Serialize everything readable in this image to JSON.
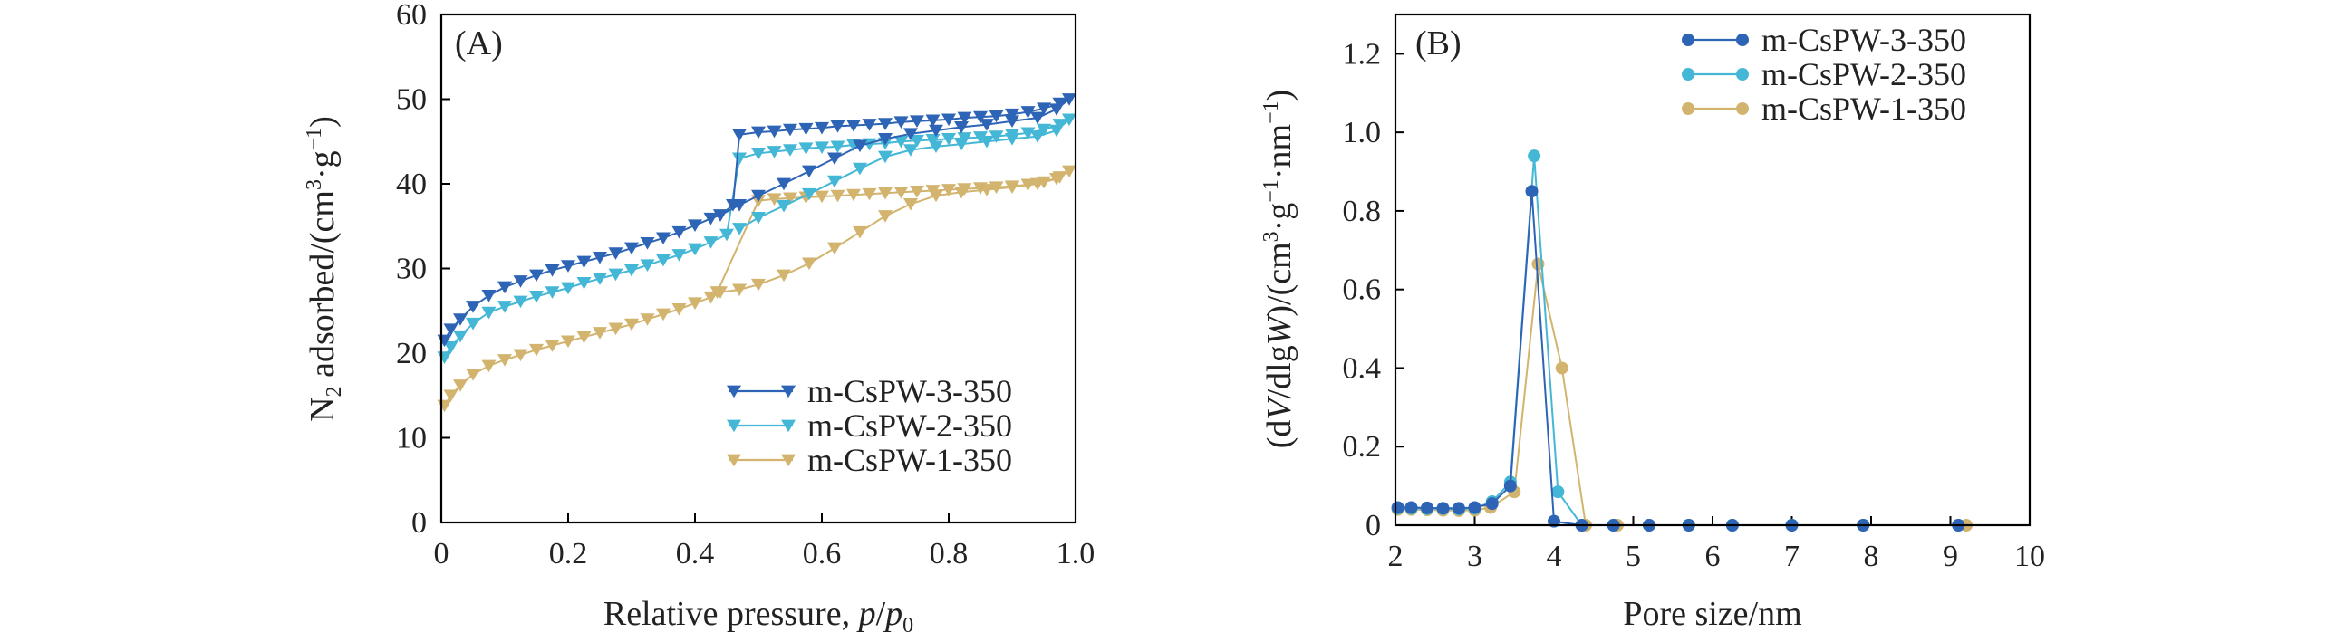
{
  "chart_data": [
    {
      "id": "A",
      "type": "line",
      "panel_label": "(A)",
      "xlabel": "Relative pressure, p/p0",
      "xlabel_parts": {
        "prefix": "Relative pressure, ",
        "p": "p",
        "slash": "/",
        "p0": "p",
        "sub": "0"
      },
      "ylabel_parts": {
        "n": "N",
        "sub": "2",
        "rest1": " adsorbed/(cm",
        "sup3": "3",
        "rest2": "·g",
        "supm1": "−1",
        "rest3": ")"
      },
      "xlim": [
        0,
        1.0
      ],
      "ylim": [
        0,
        60
      ],
      "xticks": [
        0,
        0.2,
        0.4,
        0.6,
        0.8,
        1.0
      ],
      "xtick_labels": [
        "0",
        "0.2",
        "0.4",
        "0.6",
        "0.8",
        "1.0"
      ],
      "yticks": [
        0,
        10,
        20,
        30,
        40,
        50,
        60
      ],
      "ytick_labels": [
        "0",
        "10",
        "20",
        "30",
        "40",
        "50",
        "60"
      ],
      "legend_position": "bottom-right",
      "series": [
        {
          "name": "m-CsPW-3-350",
          "color": "#2e64b5",
          "marker": "triangle-down",
          "x": [
            0.005,
            0.015,
            0.03,
            0.05,
            0.075,
            0.1,
            0.125,
            0.15,
            0.175,
            0.2,
            0.225,
            0.25,
            0.275,
            0.3,
            0.325,
            0.35,
            0.375,
            0.4,
            0.425,
            0.44,
            0.46,
            0.47,
            0.5,
            0.525,
            0.55,
            0.575,
            0.6,
            0.625,
            0.65,
            0.675,
            0.7,
            0.725,
            0.75,
            0.775,
            0.8,
            0.825,
            0.85,
            0.875,
            0.9,
            0.925,
            0.95,
            0.975,
            0.99,
            0.97,
            0.94,
            0.9,
            0.86,
            0.82,
            0.78,
            0.74,
            0.7,
            0.66,
            0.62,
            0.58,
            0.54,
            0.5,
            0.47,
            0.44
          ],
          "y": [
            21.5,
            22.8,
            24.0,
            25.5,
            26.8,
            27.8,
            28.5,
            29.2,
            29.8,
            30.3,
            30.8,
            31.3,
            31.8,
            32.4,
            33.0,
            33.6,
            34.3,
            35.1,
            35.9,
            36.3,
            37.5,
            45.8,
            46.1,
            46.2,
            46.4,
            46.5,
            46.6,
            46.8,
            46.9,
            47.0,
            47.1,
            47.3,
            47.4,
            47.5,
            47.6,
            47.8,
            47.9,
            48.0,
            48.2,
            48.5,
            48.9,
            49.5,
            50.0,
            48.8,
            47.8,
            47.4,
            47.0,
            46.7,
            46.3,
            45.9,
            45.3,
            44.5,
            43.0,
            41.5,
            40.0,
            38.6,
            37.5,
            36.3
          ]
        },
        {
          "name": "m-CsPW-2-350",
          "color": "#45b7d6",
          "marker": "triangle-down",
          "x": [
            0.005,
            0.015,
            0.03,
            0.05,
            0.075,
            0.1,
            0.125,
            0.15,
            0.175,
            0.2,
            0.225,
            0.25,
            0.275,
            0.3,
            0.325,
            0.35,
            0.375,
            0.4,
            0.425,
            0.45,
            0.47,
            0.5,
            0.525,
            0.55,
            0.575,
            0.6,
            0.625,
            0.65,
            0.675,
            0.7,
            0.725,
            0.75,
            0.775,
            0.8,
            0.825,
            0.85,
            0.875,
            0.9,
            0.925,
            0.95,
            0.975,
            0.99,
            0.97,
            0.94,
            0.9,
            0.86,
            0.82,
            0.78,
            0.74,
            0.7,
            0.66,
            0.62,
            0.58,
            0.54,
            0.5,
            0.47
          ],
          "y": [
            19.5,
            20.7,
            22.0,
            23.5,
            24.8,
            25.5,
            26.1,
            26.7,
            27.2,
            27.7,
            28.3,
            28.8,
            29.3,
            29.8,
            30.4,
            31.0,
            31.6,
            32.3,
            33.1,
            34.0,
            43.0,
            43.6,
            43.8,
            44.0,
            44.2,
            44.3,
            44.4,
            44.6,
            44.7,
            44.8,
            45.0,
            45.1,
            45.2,
            45.3,
            45.4,
            45.5,
            45.6,
            45.8,
            46.0,
            46.4,
            47.0,
            47.6,
            46.3,
            45.6,
            45.3,
            45.0,
            44.7,
            44.4,
            44.0,
            43.2,
            41.8,
            40.3,
            38.8,
            37.4,
            36.0,
            34.7
          ]
        },
        {
          "name": "m-CsPW-1-350",
          "color": "#d2b46e",
          "marker": "triangle-down",
          "x": [
            0.005,
            0.015,
            0.03,
            0.05,
            0.075,
            0.1,
            0.125,
            0.15,
            0.175,
            0.2,
            0.225,
            0.25,
            0.275,
            0.3,
            0.325,
            0.35,
            0.375,
            0.4,
            0.425,
            0.435,
            0.5,
            0.525,
            0.55,
            0.575,
            0.6,
            0.625,
            0.65,
            0.675,
            0.7,
            0.725,
            0.75,
            0.775,
            0.8,
            0.825,
            0.85,
            0.875,
            0.9,
            0.925,
            0.95,
            0.975,
            0.99,
            0.97,
            0.94,
            0.9,
            0.86,
            0.82,
            0.78,
            0.74,
            0.7,
            0.66,
            0.62,
            0.58,
            0.54,
            0.5,
            0.47,
            0.44
          ],
          "y": [
            13.8,
            15.0,
            16.2,
            17.5,
            18.5,
            19.2,
            19.8,
            20.4,
            20.9,
            21.4,
            21.9,
            22.4,
            22.9,
            23.4,
            24.0,
            24.6,
            25.2,
            25.9,
            26.6,
            27.2,
            38.0,
            38.2,
            38.3,
            38.4,
            38.5,
            38.6,
            38.7,
            38.8,
            38.9,
            39.0,
            39.1,
            39.2,
            39.3,
            39.4,
            39.5,
            39.6,
            39.7,
            39.9,
            40.2,
            40.8,
            41.5,
            40.6,
            40.0,
            39.6,
            39.3,
            39.0,
            38.6,
            37.6,
            36.2,
            34.3,
            32.4,
            30.6,
            29.2,
            28.1,
            27.5,
            27.2
          ]
        }
      ]
    },
    {
      "id": "B",
      "type": "line",
      "panel_label": "(B)",
      "xlabel": "Pore size/nm",
      "ylabel_parts": {
        "open": "(d",
        "V": "V",
        "mid": "/dlg",
        "W": "W",
        "rest1": ")/(cm",
        "sup3": "3",
        "rest2": "·g",
        "supm1": "−1",
        "rest3": "·nm",
        "supm1b": "−1",
        "rest4": ")"
      },
      "xlim": [
        2,
        10
      ],
      "ylim": [
        0,
        1.3
      ],
      "xticks": [
        2,
        3,
        4,
        5,
        6,
        7,
        8,
        9,
        10
      ],
      "xtick_labels": [
        "2",
        "3",
        "4",
        "5",
        "6",
        "7",
        "8",
        "9",
        "10"
      ],
      "yticks": [
        0,
        0.2,
        0.4,
        0.6,
        0.8,
        1.0,
        1.2
      ],
      "ytick_labels": [
        "0",
        "0.2",
        "0.4",
        "0.6",
        "0.8",
        "1.0",
        "1.2"
      ],
      "legend_position": "top-right",
      "series": [
        {
          "name": "m-CsPW-3-350",
          "color": "#2e64b5",
          "marker": "circle",
          "x": [
            2.03,
            2.2,
            2.4,
            2.6,
            2.8,
            3.0,
            3.22,
            3.45,
            3.72,
            4.0,
            4.35,
            4.75,
            5.2,
            5.7,
            6.25,
            7.0,
            7.9,
            9.1
          ],
          "y": [
            0.045,
            0.045,
            0.044,
            0.043,
            0.043,
            0.045,
            0.055,
            0.1,
            0.85,
            0.01,
            0.0,
            0.0,
            0.0,
            0.0,
            0.0,
            0.0,
            0.0,
            0.0
          ]
        },
        {
          "name": "m-CsPW-2-350",
          "color": "#45b7d6",
          "marker": "circle",
          "x": [
            2.03,
            2.2,
            2.4,
            2.6,
            2.8,
            3.0,
            3.22,
            3.45,
            3.75,
            4.05,
            4.35,
            4.75,
            5.2,
            5.7,
            6.25,
            7.0,
            7.9,
            9.1
          ],
          "y": [
            0.043,
            0.043,
            0.042,
            0.042,
            0.041,
            0.043,
            0.06,
            0.11,
            0.94,
            0.085,
            0.0,
            0.0,
            0.0,
            0.0,
            0.0,
            0.0,
            0.0,
            0.0
          ]
        },
        {
          "name": "m-CsPW-1-350",
          "color": "#d2b46e",
          "marker": "circle",
          "x": [
            2.03,
            2.2,
            2.4,
            2.6,
            2.8,
            3.0,
            3.2,
            3.5,
            3.8,
            4.1,
            4.4,
            4.8,
            5.2,
            5.7,
            6.25,
            7.0,
            7.9,
            9.2
          ],
          "y": [
            0.04,
            0.04,
            0.039,
            0.038,
            0.037,
            0.038,
            0.045,
            0.085,
            0.665,
            0.4,
            0.0,
            0.0,
            0.0,
            0.0,
            0.0,
            0.0,
            0.0,
            0.0
          ]
        }
      ]
    }
  ]
}
